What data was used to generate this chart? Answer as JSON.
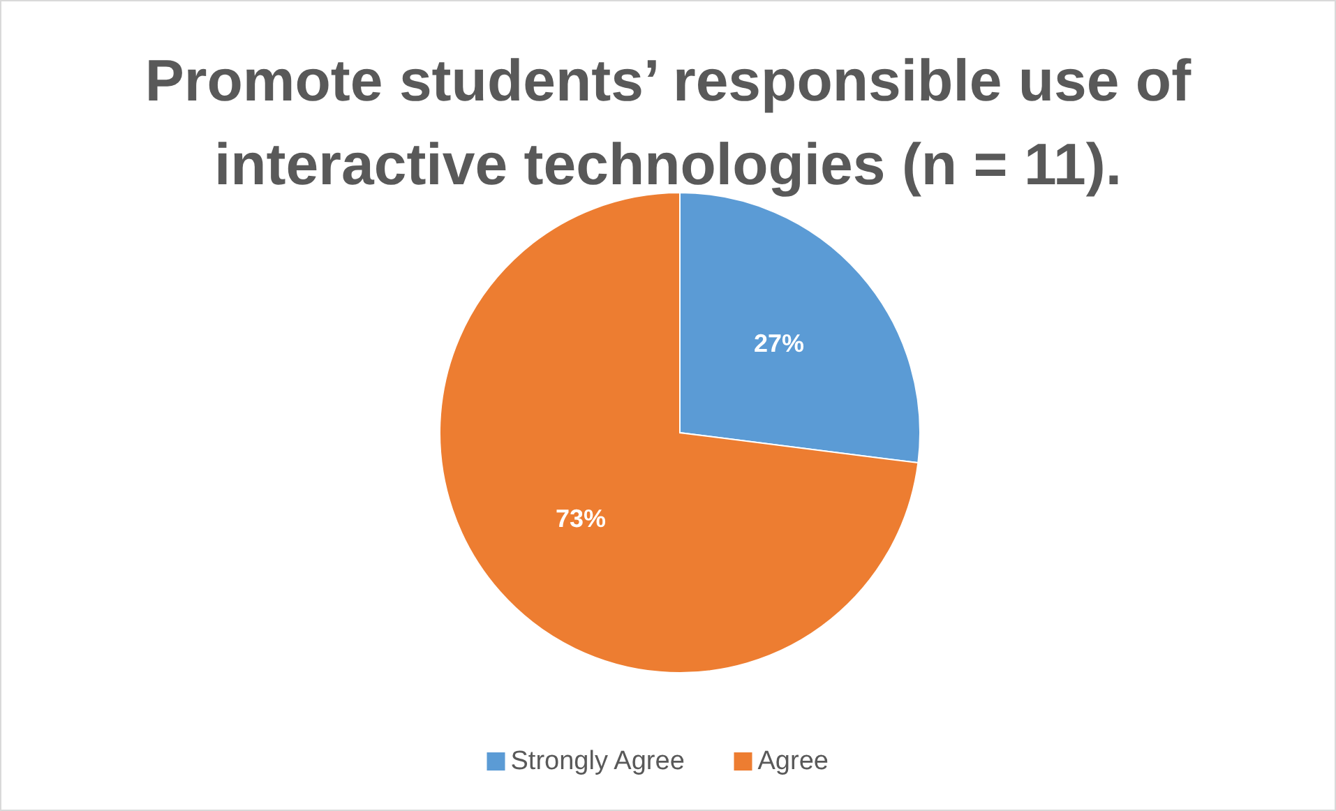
{
  "chart_data": {
    "type": "pie",
    "title": "Promote students’ responsible use of interactive technologies (n = 11).",
    "categories": [
      "Strongly Agree",
      "Agree"
    ],
    "values": [
      27,
      73
    ],
    "colors": [
      "#5b9bd5",
      "#ed7d31"
    ],
    "value_labels": [
      "27%",
      "73%"
    ],
    "legend": "bottom"
  }
}
